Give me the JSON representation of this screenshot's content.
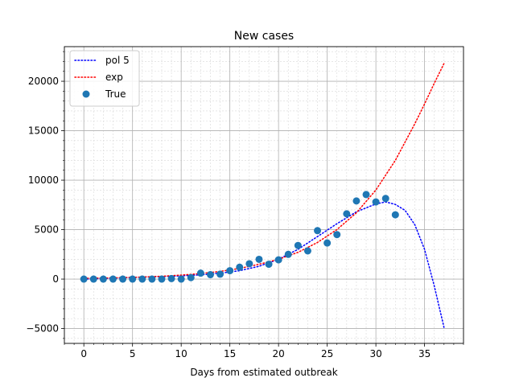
{
  "chart_data": {
    "type": "line",
    "title": "New cases",
    "xlabel": "Days from estimated outbreak",
    "ylabel": "",
    "xlim": [
      -2,
      39
    ],
    "ylim": [
      -6500,
      23500
    ],
    "xticks": [
      0,
      5,
      10,
      15,
      20,
      25,
      30,
      35
    ],
    "yticks": [
      -5000,
      0,
      5000,
      10000,
      15000,
      20000
    ],
    "grid": true,
    "minor_grid": true,
    "legend_position": "top-left",
    "series": [
      {
        "name": "pol 5",
        "kind": "line",
        "style": "dotted",
        "color": "#0000ff",
        "x": [
          0,
          2,
          4,
          6,
          8,
          10,
          12,
          14,
          16,
          18,
          20,
          22,
          24,
          26,
          28,
          30,
          31,
          32,
          33,
          34,
          35,
          36,
          37
        ],
        "y": [
          0,
          60,
          130,
          200,
          260,
          330,
          430,
          600,
          850,
          1300,
          2000,
          3000,
          4300,
          5600,
          6800,
          7600,
          7800,
          7550,
          6950,
          5500,
          3000,
          -700,
          -4900
        ]
      },
      {
        "name": "exp",
        "kind": "line",
        "style": "dotted",
        "color": "#ff0000",
        "x": [
          0,
          2,
          4,
          6,
          8,
          10,
          12,
          14,
          16,
          18,
          20,
          22,
          24,
          26,
          28,
          30,
          32,
          34,
          35,
          36,
          37
        ],
        "y": [
          80,
          110,
          150,
          210,
          290,
          400,
          560,
          780,
          1080,
          1500,
          2000,
          2700,
          3700,
          5000,
          6700,
          9000,
          12000,
          15700,
          17700,
          19800,
          21800
        ]
      },
      {
        "name": "True",
        "kind": "scatter",
        "color": "#1f77b4",
        "x": [
          0,
          1,
          2,
          3,
          4,
          5,
          6,
          7,
          8,
          9,
          10,
          11,
          12,
          13,
          14,
          15,
          16,
          17,
          18,
          19,
          20,
          21,
          22,
          23,
          24,
          25,
          26,
          27,
          28,
          29,
          30,
          31,
          32
        ],
        "y": [
          0,
          0,
          0,
          0,
          0,
          0,
          0,
          0,
          0,
          50,
          0,
          150,
          600,
          450,
          500,
          850,
          1200,
          1550,
          2000,
          1500,
          1950,
          2500,
          3400,
          2850,
          4900,
          3650,
          4500,
          6600,
          7900,
          8550,
          7800,
          8150,
          6500
        ]
      }
    ]
  }
}
